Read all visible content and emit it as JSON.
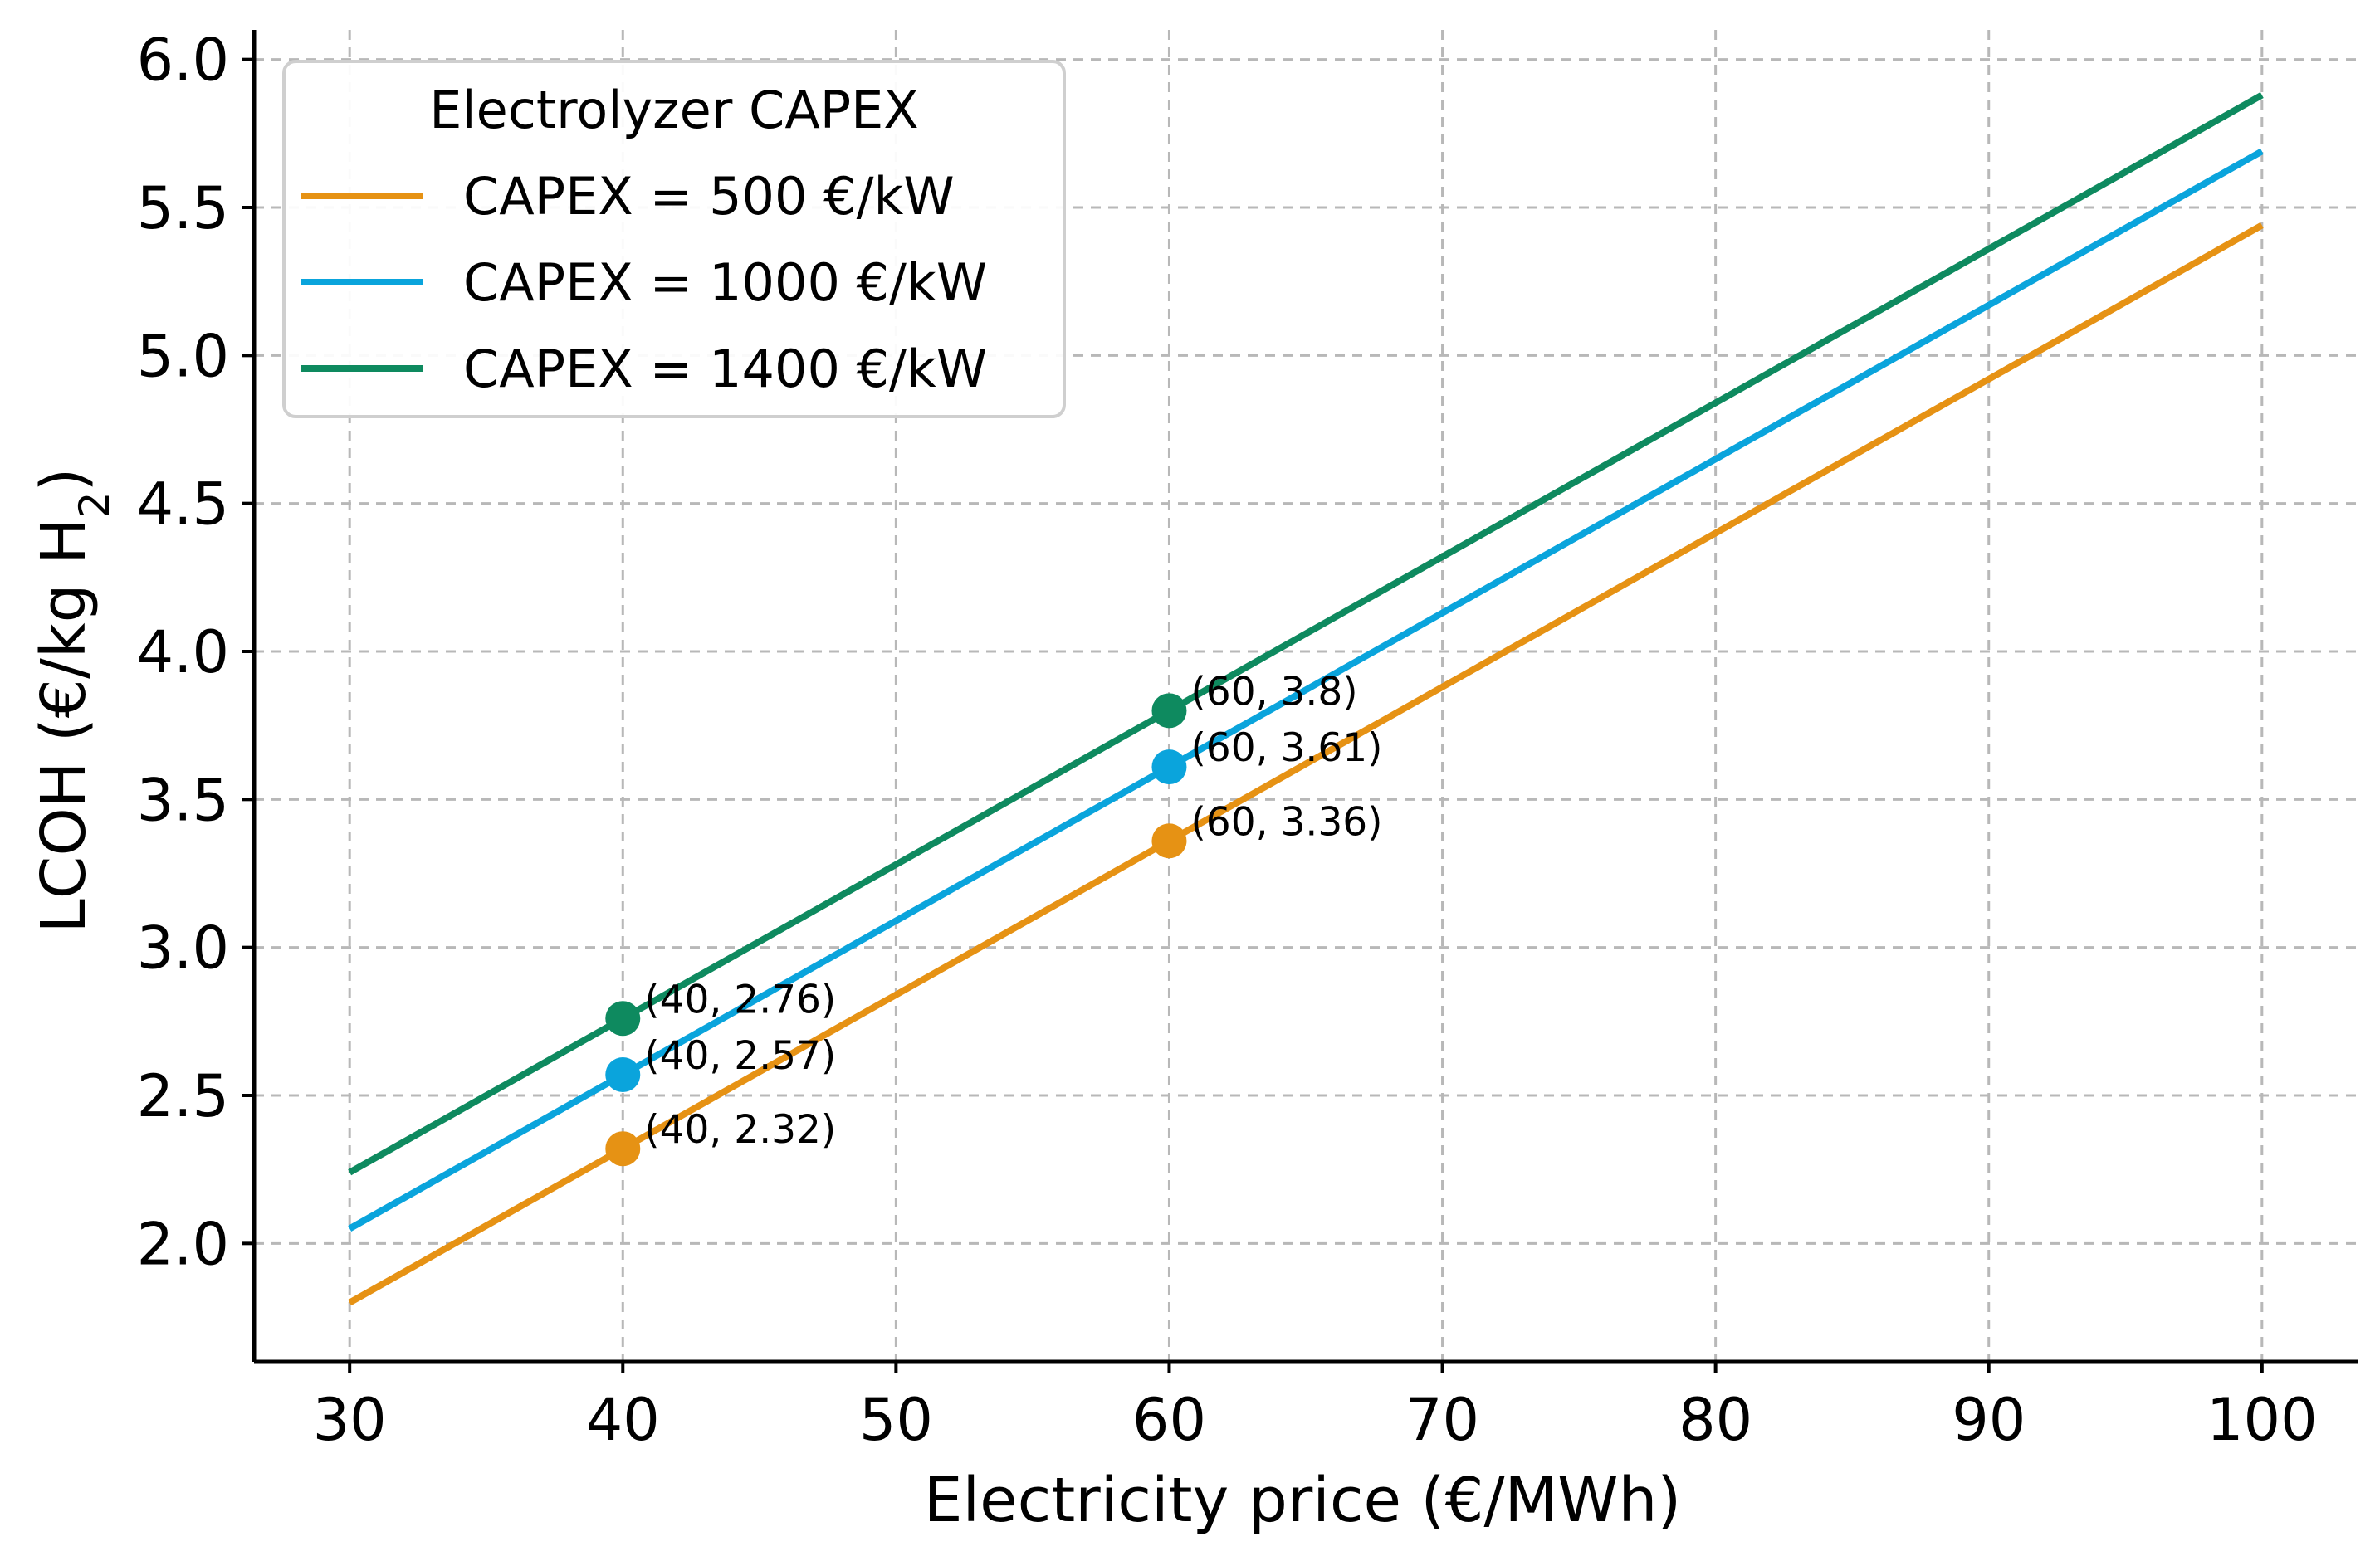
{
  "chart_data": {
    "type": "line",
    "title": "",
    "xlabel": "Electricity price (€/MWh)",
    "ylabel_prefix": "LCOH (€/kg H",
    "ylabel_subscript": "2",
    "ylabel_suffix": ")",
    "xlim": [
      26.5,
      103.5
    ],
    "ylim": [
      1.6,
      6.1
    ],
    "x_ticks": [
      30,
      40,
      50,
      60,
      70,
      80,
      90,
      100
    ],
    "x_tick_labels": [
      "30",
      "40",
      "50",
      "60",
      "70",
      "80",
      "90",
      "100"
    ],
    "y_ticks": [
      2.0,
      2.5,
      3.0,
      3.5,
      4.0,
      4.5,
      5.0,
      5.5,
      6.0
    ],
    "y_tick_labels": [
      "2.0",
      "2.5",
      "3.0",
      "3.5",
      "4.0",
      "4.5",
      "5.0",
      "5.5",
      "6.0"
    ],
    "grid": true,
    "legend": {
      "title": "Electrolyzer CAPEX",
      "placement": "top-left"
    },
    "series": [
      {
        "name": "CAPEX = 500 €/kW",
        "color": "#E69214",
        "x": [
          30,
          100
        ],
        "y": [
          1.8,
          5.44
        ],
        "markers": [
          {
            "x": 40,
            "y": 2.32,
            "label": "(40, 2.32)"
          },
          {
            "x": 60,
            "y": 3.36,
            "label": "(60, 3.36)"
          }
        ]
      },
      {
        "name": "CAPEX = 1000 €/kW",
        "color": "#0AA4DC",
        "x": [
          30,
          100
        ],
        "y": [
          2.05,
          5.69
        ],
        "markers": [
          {
            "x": 40,
            "y": 2.57,
            "label": "(40, 2.57)"
          },
          {
            "x": 60,
            "y": 3.61,
            "label": "(60, 3.61)"
          }
        ]
      },
      {
        "name": "CAPEX = 1400 €/kW",
        "color": "#0E8A5F",
        "x": [
          30,
          100
        ],
        "y": [
          2.24,
          5.88
        ],
        "markers": [
          {
            "x": 40,
            "y": 2.76,
            "label": "(40, 2.76)"
          },
          {
            "x": 60,
            "y": 3.8,
            "label": "(60, 3.8)"
          }
        ]
      }
    ]
  }
}
